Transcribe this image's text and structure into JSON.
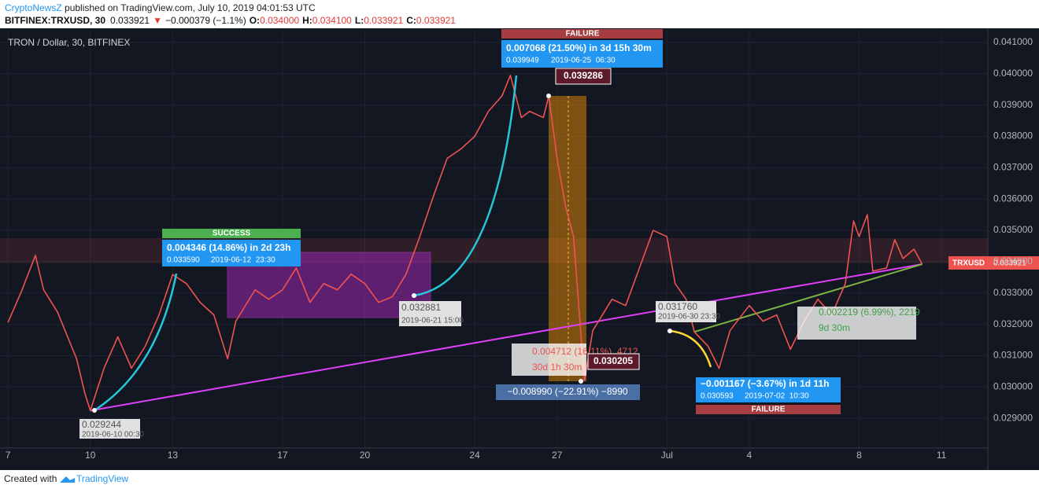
{
  "header": {
    "author": "CryptoNewsZ",
    "published": " published on TradingView.com, July 10, 2019 04:01:53 UTC",
    "symbol": "BITFINEX:TRXUSD, 30",
    "last": "0.033921",
    "arrow": "▼",
    "change": "−0.000379 (−1.1%)",
    "open_label": "O:",
    "open": "0.034000",
    "high_label": "H:",
    "high": "0.034100",
    "low_label": "L:",
    "low": "0.033921",
    "close_label": "C:",
    "close": "0.033921"
  },
  "chart_data": {
    "type": "line",
    "title": "TRON / Dollar, 30, BITFINEX",
    "color": "#ef5350",
    "grid": true,
    "x": [
      7,
      7.5,
      8,
      8.3,
      8.8,
      9.5,
      9.8,
      10,
      10.5,
      11,
      11.5,
      12,
      12.5,
      13,
      13.5,
      14,
      14.5,
      15,
      15.3,
      16,
      16.5,
      17,
      17.5,
      18,
      18.5,
      19,
      19.5,
      20,
      20.5,
      21,
      21.5,
      22,
      22.5,
      23,
      23.5,
      24,
      24.5,
      25,
      25.3,
      25.7,
      26,
      26.5,
      26.7,
      27,
      27.3,
      27.6,
      27.9,
      28,
      28.3,
      29,
      29.5,
      30,
      30.5,
      31,
      31.3,
      31.7,
      32,
      32.5,
      32.9,
      33.3,
      34,
      34.5,
      35,
      35.5,
      36,
      36.5,
      37,
      37.5,
      37.8,
      38,
      38.3,
      38.5,
      39,
      39.3,
      39.6,
      40,
      40.3
    ],
    "values": [
      0.03206,
      0.03307,
      0.0342,
      0.0331,
      0.0324,
      0.0309,
      0.0298,
      0.029244,
      0.0306,
      0.0316,
      0.0306,
      0.0313,
      0.0323,
      0.03359,
      0.0333,
      0.0327,
      0.0323,
      0.0309,
      0.0321,
      0.0331,
      0.0328,
      0.0331,
      0.0338,
      0.0327,
      0.0333,
      0.0331,
      0.0336,
      0.0333,
      0.0327,
      0.032881,
      0.0336,
      0.0348,
      0.0361,
      0.0373,
      0.0376,
      0.038,
      0.0388,
      0.0393,
      0.039949,
      0.0386,
      0.0388,
      0.0386,
      0.039286,
      0.0373,
      0.0358,
      0.0348,
      0.0313,
      0.030205,
      0.0318,
      0.0328,
      0.0326,
      0.0338,
      0.035,
      0.0348,
      0.0333,
      0.0328,
      0.03176,
      0.0313,
      0.030593,
      0.0318,
      0.0326,
      0.0321,
      0.0323,
      0.0312,
      0.0321,
      0.0328,
      0.0323,
      0.0333,
      0.0353,
      0.0348,
      0.0355,
      0.0337,
      0.0338,
      0.0347,
      0.0341,
      0.0344,
      0.033921
    ],
    "xlim": [
      6.71,
      42.69
    ],
    "ylim": [
      0.02805,
      0.0414
    ],
    "xticks": [
      7,
      10,
      13,
      17,
      20,
      24,
      27,
      {
        "value": 31,
        "label": "Jul"
      },
      4,
      8,
      11
    ],
    "yticks": [
      {
        "value": 0.029,
        "label": "0.029000"
      },
      {
        "value": 0.03,
        "label": "0.030000"
      },
      {
        "value": 0.031,
        "label": "0.031000"
      },
      {
        "value": 0.032,
        "label": "0.032000"
      },
      {
        "value": 0.033,
        "label": "0.033000"
      },
      {
        "value": 0.034,
        "label": "0.034000"
      },
      {
        "value": 0.035,
        "label": "0.035000"
      },
      {
        "value": 0.036,
        "label": "0.036000"
      },
      {
        "value": 0.037,
        "label": "0.037000"
      },
      {
        "value": 0.038,
        "label": "0.038000"
      },
      {
        "value": 0.039,
        "label": "0.039000"
      },
      {
        "value": 0.04,
        "label": "0.040000"
      },
      {
        "value": 0.041,
        "label": "0.041000"
      }
    ],
    "price_label": {
      "name": "TRXUSD",
      "value": "0.033921"
    }
  },
  "annotations": [
    "SUCCESS",
    "0.004346 (14.86%) in 2d 23h",
    "0.033590",
    "2019-06-12  23:30",
    "FAILURE",
    "0.007068 (21.50%) in 3d 15h 30m",
    "0.039949",
    "2019-06-25  06:30",
    "0.039286",
    "0.004712 (16.11%)  4712",
    "30d 1h 30m",
    "0.030205",
    "−0.008990 (−22.91%) −8990",
    "0.029244",
    "2019-06-10 00:30",
    "0.032881",
    "2019-06-21 15:00",
    "0.031760",
    "2019-06-30 23:30",
    "−0.001167 (−3.67%) in 1d 11h",
    "0.030593",
    "2019-07-02  10:30",
    "FAILURE",
    "0.002219 (6.99%), 2219",
    "9d 30m"
  ],
  "footer": {
    "created": "Created with",
    "brand": "TradingView"
  }
}
